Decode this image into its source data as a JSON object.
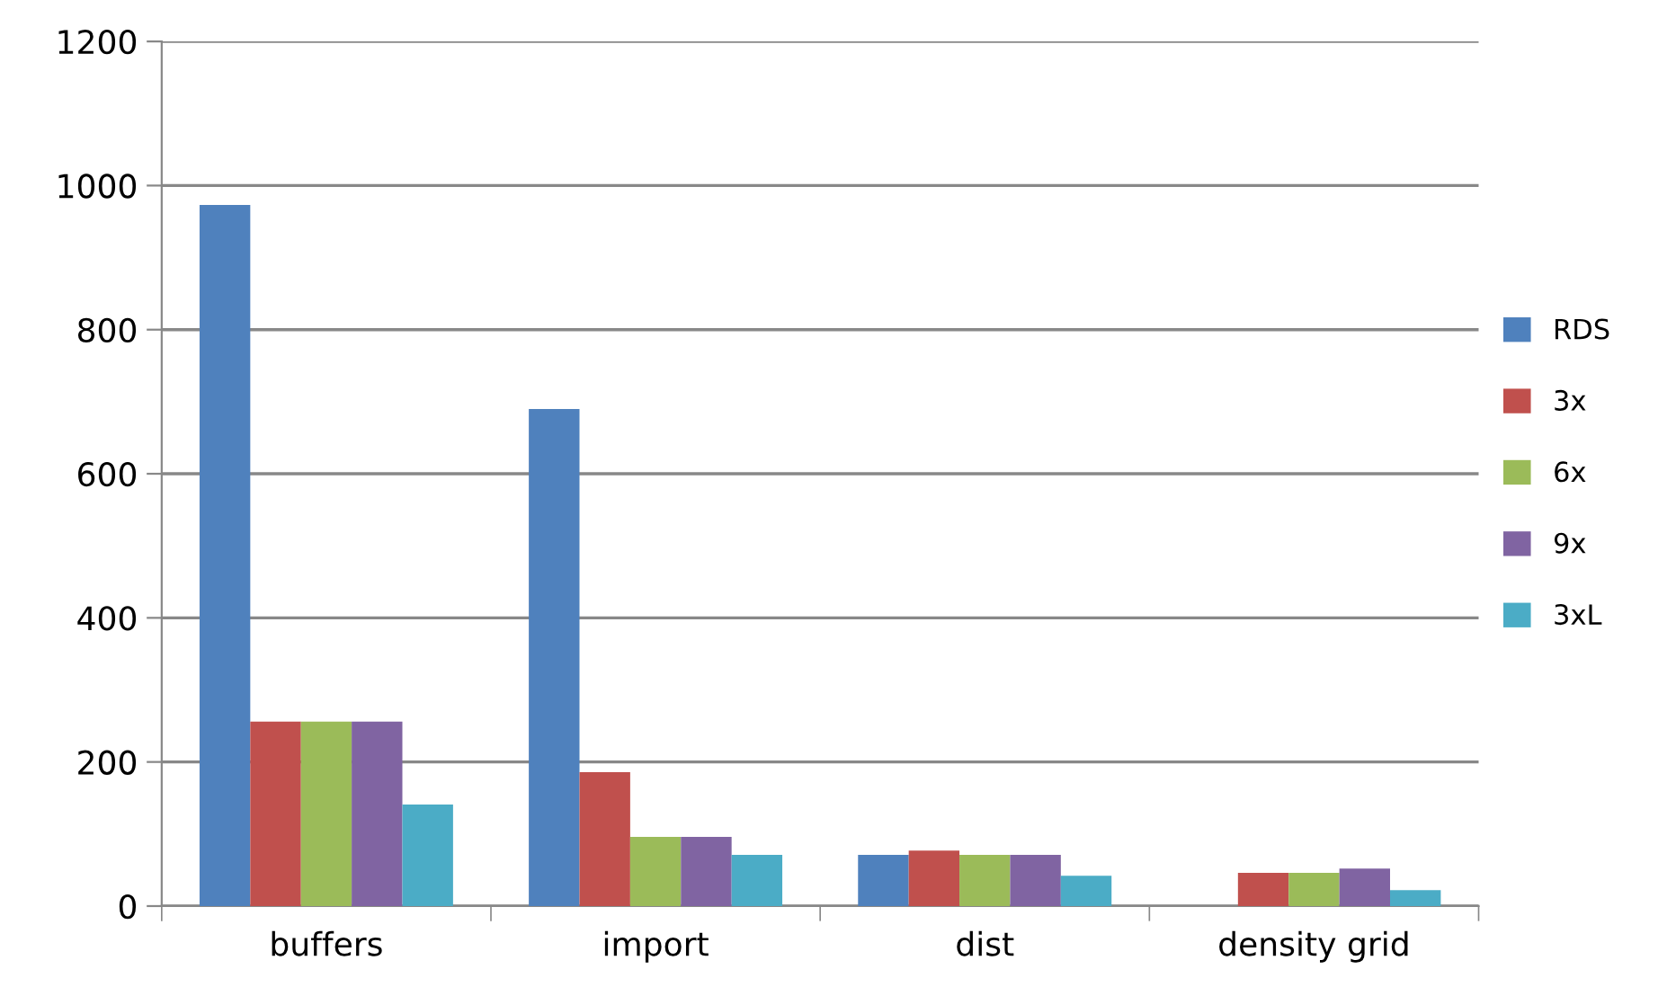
{
  "chart_data": {
    "type": "bar",
    "categories": [
      "buffers",
      "import",
      "dist",
      "density grid"
    ],
    "series": [
      {
        "name": "RDS",
        "color": "#4f81bd",
        "values": [
          973,
          690,
          71,
          null
        ]
      },
      {
        "name": "3x",
        "color": "#c0504d",
        "values": [
          256,
          186,
          77,
          46
        ]
      },
      {
        "name": "6x",
        "color": "#9bbb59",
        "values": [
          256,
          96,
          71,
          46
        ]
      },
      {
        "name": "9x",
        "color": "#8064a2",
        "values": [
          256,
          96,
          71,
          52
        ]
      },
      {
        "name": "3xL",
        "color": "#4bacc6",
        "values": [
          141,
          71,
          42,
          22
        ]
      }
    ],
    "ylim": [
      0,
      1200
    ],
    "yticks": [
      0,
      200,
      400,
      600,
      800,
      1000,
      1200
    ],
    "grid": "y",
    "legend": "right"
  }
}
